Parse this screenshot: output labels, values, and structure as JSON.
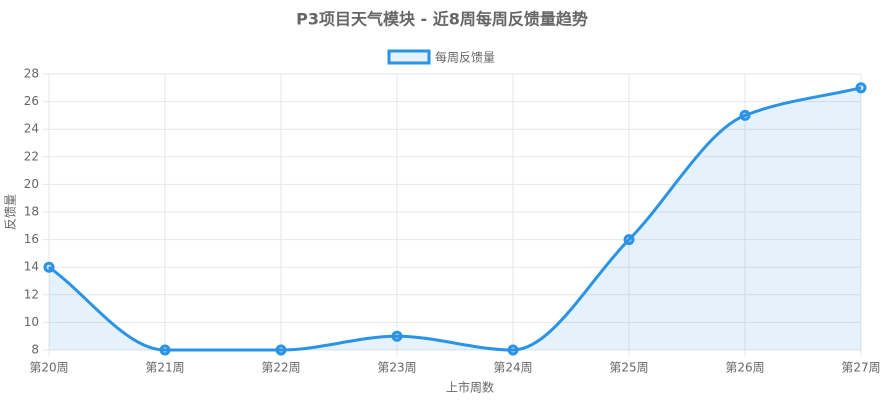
{
  "chart_data": {
    "type": "line",
    "title": "P3项目天气模块 - 近8周每周反馈量趋势",
    "x_label": "上市周数",
    "y_label": "反馈量",
    "categories": [
      "第20周",
      "第21周",
      "第22周",
      "第23周",
      "第24周",
      "第25周",
      "第26周",
      "第27周"
    ],
    "series": [
      {
        "name": "每周反馈量",
        "color": "#2a93e6",
        "values": [
          14,
          8,
          8,
          9,
          8,
          16,
          25,
          27
        ]
      }
    ],
    "ylim": [
      8,
      28
    ],
    "yticks": [
      8,
      10,
      12,
      14,
      16,
      18,
      20,
      22,
      24,
      26,
      28
    ],
    "grid": true,
    "legend": "top",
    "fill": true
  }
}
